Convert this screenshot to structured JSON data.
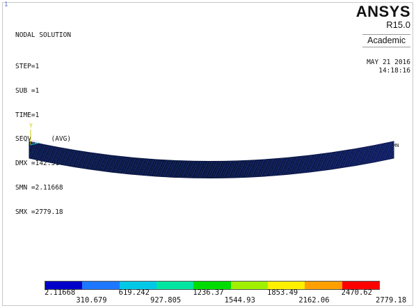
{
  "window_number": "1",
  "info": {
    "title": "NODAL SOLUTION",
    "step": "STEP=1",
    "sub": "SUB =1",
    "time": "TIME=1",
    "result": "SEQV     (AVG)",
    "dmx": "DMX =142.314",
    "smn": "SMN =2.11668",
    "smx": "SMX =2779.18"
  },
  "brand": {
    "name": "ANSYS",
    "version": "R15.0",
    "edition": "Academic"
  },
  "date": "MAY 21 2016",
  "time": "14:18:16",
  "markers": {
    "max": "MX",
    "min": "MN",
    "axis_y": "Y"
  },
  "legend": {
    "colors": [
      "#0000c8",
      "#1e78ff",
      "#00c8e6",
      "#00e6a0",
      "#00dc00",
      "#a0f000",
      "#fff000",
      "#ffa000",
      "#ff0000"
    ],
    "labels_top": [
      "2.11668",
      "619.242",
      "1236.37",
      "1853.49",
      "2470.62"
    ],
    "labels_bottom": [
      "310.679",
      "927.805",
      "1544.93",
      "2162.06",
      "2779.18"
    ]
  },
  "colors": {
    "beam_dark": "#0a1440",
    "beam_mid": "#1f2f80",
    "beam_hatch": "#3fa060"
  }
}
